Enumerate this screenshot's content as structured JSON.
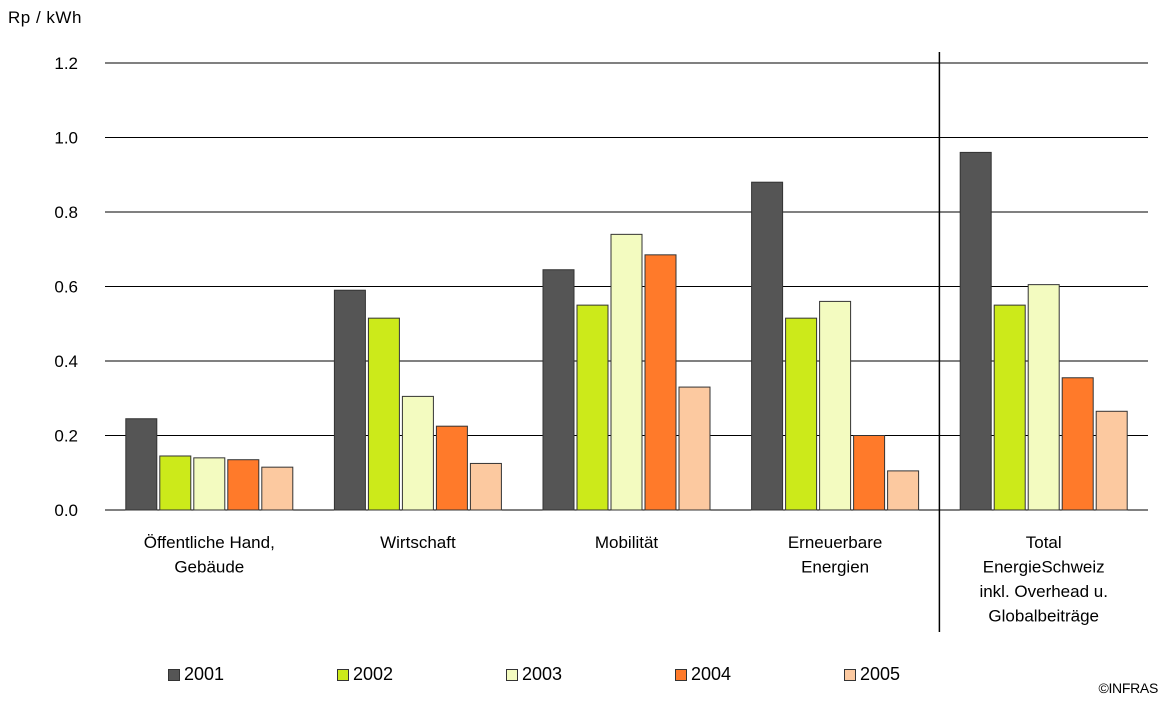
{
  "chart_data": {
    "type": "bar",
    "ylabel": "Rp / kWh",
    "ylim": [
      0,
      1.2
    ],
    "yticks": [
      "0.0",
      "0.2",
      "0.4",
      "0.6",
      "0.8",
      "1.0",
      "1.2"
    ],
    "categories": [
      [
        "Öffentliche Hand,",
        "Gebäude"
      ],
      [
        "Wirtschaft"
      ],
      [
        "Mobilität"
      ],
      [
        "Erneuerbare",
        "Energien"
      ],
      [
        "Total",
        "EnergieSchweiz",
        "inkl. Overhead u.",
        "Globalbeiträge"
      ]
    ],
    "series": [
      {
        "name": "2001",
        "color": "#555555",
        "values": [
          0.245,
          0.59,
          0.645,
          0.88,
          0.96
        ]
      },
      {
        "name": "2002",
        "color": "#ccea1a",
        "values": [
          0.145,
          0.515,
          0.55,
          0.515,
          0.55
        ]
      },
      {
        "name": "2003",
        "color": "#f3fbc0",
        "values": [
          0.14,
          0.305,
          0.74,
          0.56,
          0.605
        ]
      },
      {
        "name": "2004",
        "color": "#ff7a2a",
        "values": [
          0.135,
          0.225,
          0.685,
          0.2,
          0.355
        ]
      },
      {
        "name": "2005",
        "color": "#fcc9a0",
        "values": [
          0.115,
          0.125,
          0.33,
          0.105,
          0.265
        ]
      }
    ],
    "grid": true,
    "legend_position": "bottom",
    "separator_before_category": 4
  },
  "copyright": "©INFRAS"
}
